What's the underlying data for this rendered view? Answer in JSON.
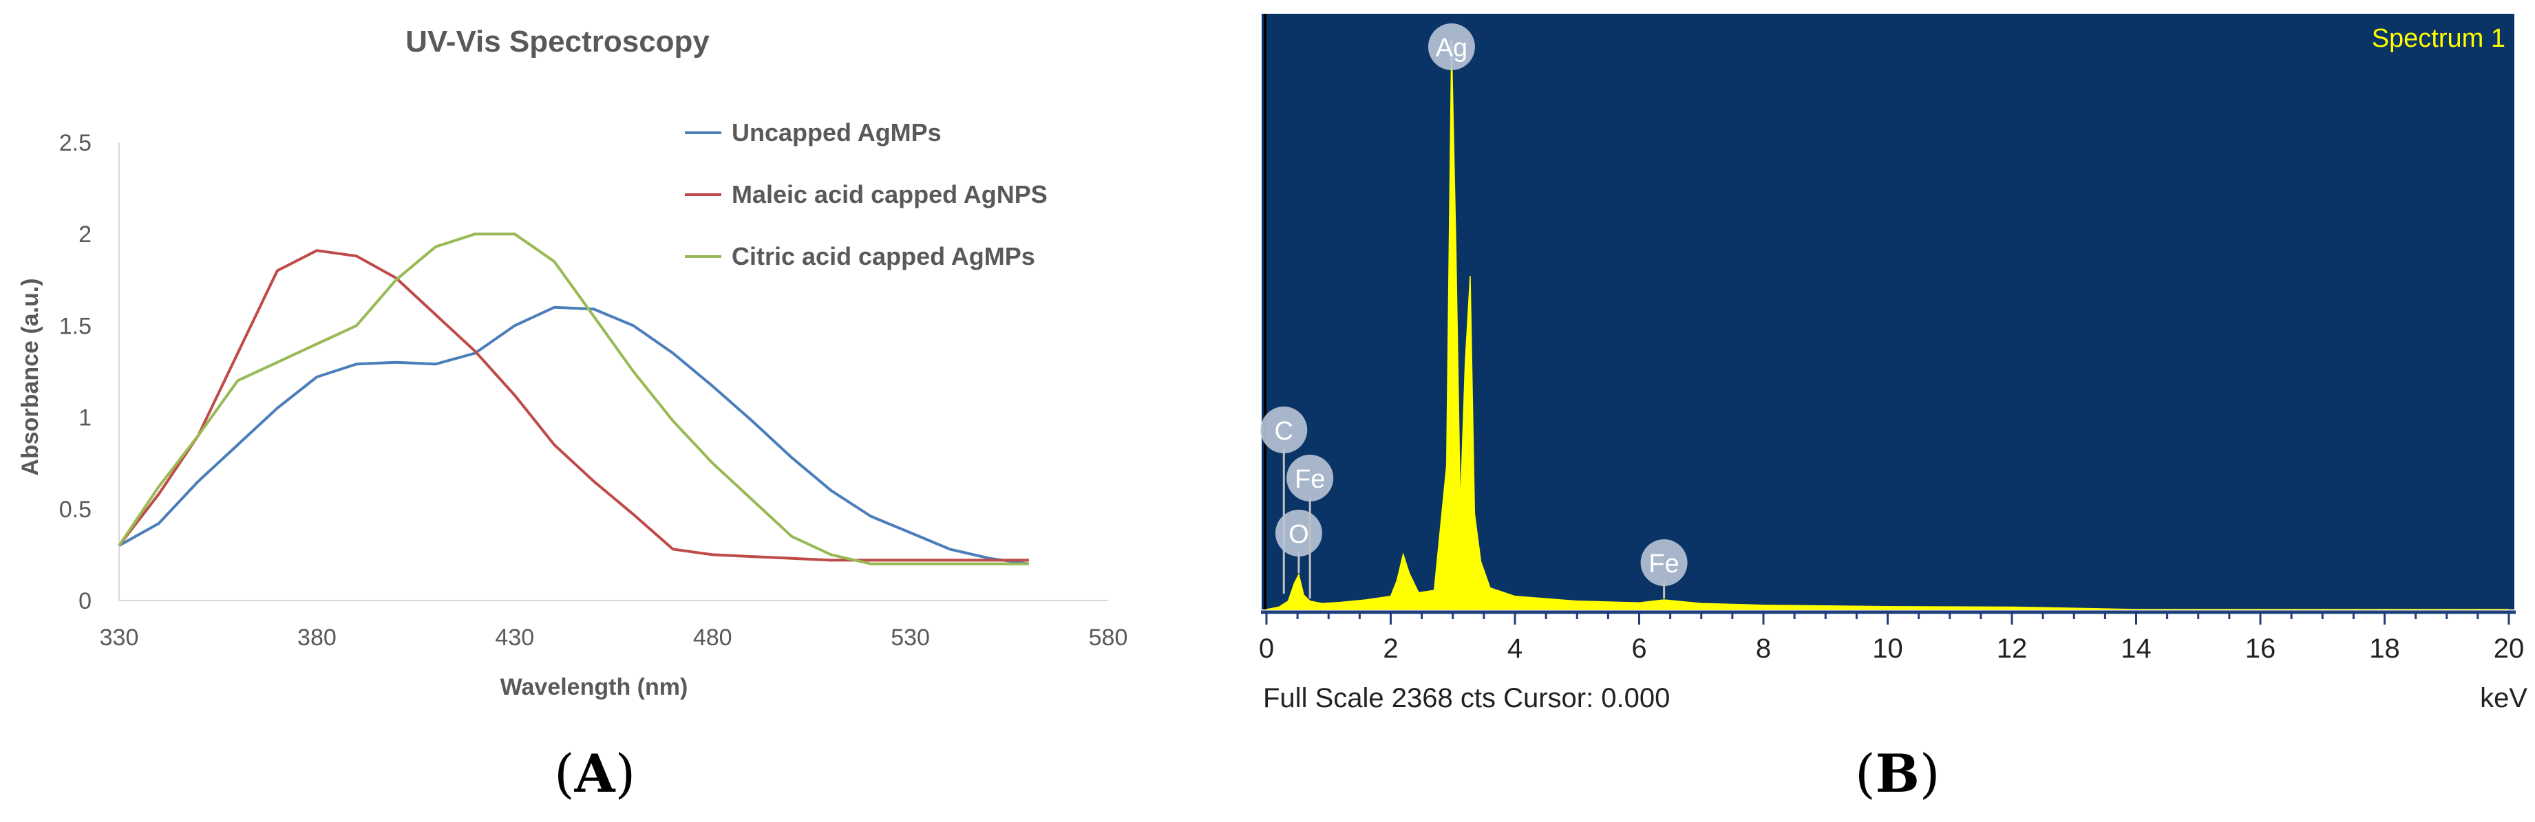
{
  "panels": {
    "a_label": "A",
    "b_label": "B"
  },
  "chart_data": [
    {
      "type": "line",
      "title": "UV-Vis Spectroscopy",
      "xlabel": "Wavelength (nm)",
      "ylabel": "Absorbance (a.u.)",
      "xlim": [
        330,
        580
      ],
      "ylim": [
        0,
        2.5
      ],
      "xticks": [
        "330",
        "380",
        "430",
        "480",
        "530",
        "580"
      ],
      "yticks": [
        "0",
        "0.5",
        "1",
        "1.5",
        "2",
        "2.5"
      ],
      "grid": false,
      "legend_position": "top-right",
      "series": [
        {
          "name": "Uncapped AgMPs",
          "color": "#4a7ebb",
          "x": [
            330,
            340,
            350,
            360,
            370,
            380,
            390,
            400,
            410,
            420,
            430,
            440,
            450,
            460,
            470,
            480,
            490,
            500,
            510,
            520,
            530,
            540,
            550,
            560
          ],
          "y": [
            0.3,
            0.42,
            0.65,
            0.85,
            1.05,
            1.22,
            1.29,
            1.3,
            1.29,
            1.35,
            1.5,
            1.6,
            1.59,
            1.5,
            1.35,
            1.17,
            0.98,
            0.78,
            0.6,
            0.46,
            0.37,
            0.28,
            0.23,
            0.2
          ]
        },
        {
          "name": "Maleic acid capped AgNPS",
          "color": "#be4b48",
          "x": [
            330,
            340,
            350,
            360,
            370,
            380,
            390,
            400,
            410,
            420,
            430,
            440,
            450,
            460,
            470,
            480,
            490,
            500,
            510,
            520,
            530,
            540,
            550,
            560
          ],
          "y": [
            0.3,
            0.58,
            0.9,
            1.35,
            1.8,
            1.91,
            1.88,
            1.76,
            1.56,
            1.36,
            1.12,
            0.85,
            0.65,
            0.47,
            0.28,
            0.25,
            0.24,
            0.23,
            0.22,
            0.22,
            0.22,
            0.22,
            0.22,
            0.22
          ]
        },
        {
          "name": "Citric acid capped AgMPs",
          "color": "#98b954",
          "x": [
            330,
            340,
            350,
            360,
            370,
            380,
            390,
            400,
            410,
            420,
            430,
            440,
            450,
            460,
            470,
            480,
            490,
            500,
            510,
            520,
            530,
            540,
            550,
            560
          ],
          "y": [
            0.3,
            0.62,
            0.9,
            1.2,
            1.3,
            1.4,
            1.5,
            1.75,
            1.93,
            2.0,
            2.0,
            1.85,
            1.55,
            1.25,
            0.98,
            0.75,
            0.55,
            0.35,
            0.25,
            0.2,
            0.2,
            0.2,
            0.2,
            0.2
          ]
        }
      ]
    },
    {
      "type": "area",
      "title": "Spectrum 1",
      "xlabel": "keV",
      "footer": "Full Scale 2368 cts Cursor: 0.000",
      "xlim": [
        0,
        20
      ],
      "ylim": [
        0,
        2368
      ],
      "xticks": [
        "0",
        "2",
        "4",
        "6",
        "8",
        "10",
        "12",
        "14",
        "16",
        "18",
        "20"
      ],
      "background_color": "#0a3366",
      "fill_color": "#ffff00",
      "peaks": [
        {
          "label": "C",
          "kev": 0.28,
          "counts": 60
        },
        {
          "label": "O",
          "kev": 0.52,
          "counts": 145
        },
        {
          "label": "Fe",
          "kev": 0.7,
          "counts": 40
        },
        {
          "label": "Ag",
          "kev": 2.98,
          "counts": 2368
        },
        {
          "label": "Fe",
          "kev": 6.4,
          "counts": 40
        }
      ],
      "series": [
        {
          "name": "Spectrum 1",
          "x": [
            0.0,
            0.2,
            0.35,
            0.45,
            0.52,
            0.6,
            0.7,
            0.9,
            1.2,
            1.6,
            2.0,
            2.1,
            2.2,
            2.3,
            2.45,
            2.7,
            2.9,
            2.98,
            3.05,
            3.12,
            3.2,
            3.28,
            3.35,
            3.45,
            3.6,
            4.0,
            5.0,
            6.0,
            6.4,
            7.0,
            8.0,
            10.0,
            12.0,
            12.5,
            14.0,
            16.0,
            18.0,
            20.0
          ],
          "y": [
            0,
            10,
            35,
            110,
            145,
            60,
            35,
            25,
            30,
            40,
            55,
            120,
            230,
            150,
            70,
            80,
            600,
            2368,
            1500,
            420,
            1030,
            1390,
            400,
            200,
            90,
            55,
            35,
            28,
            40,
            25,
            18,
            12,
            10,
            8,
            0,
            0,
            0,
            0
          ]
        }
      ]
    }
  ]
}
